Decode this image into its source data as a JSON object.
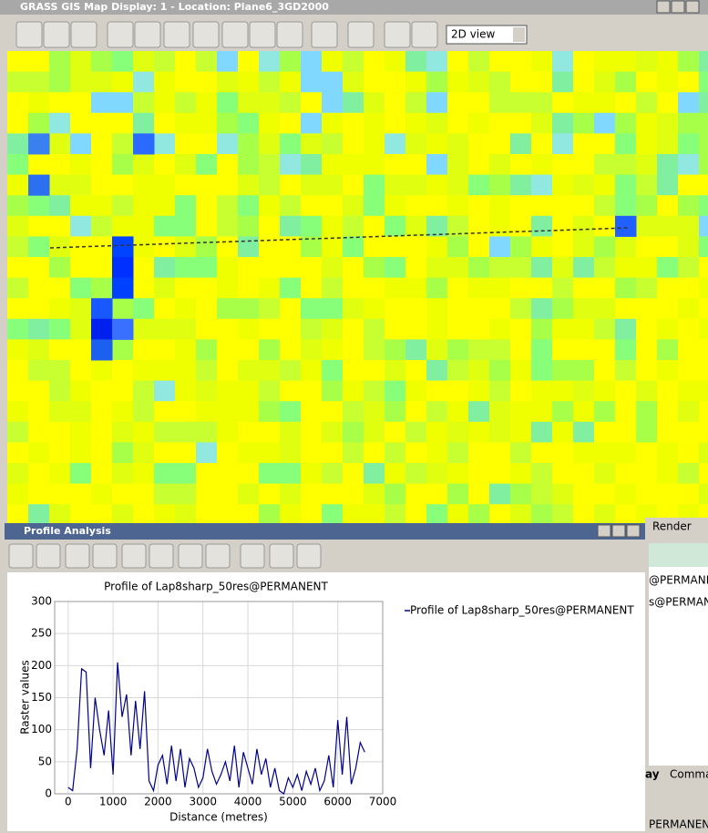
{
  "map_window": {
    "title": "GRASS GIS Map Display: 1 - Location: Plane6_3GD2000",
    "view_select": "2D view"
  },
  "profile_window": {
    "title": "Profile Analysis"
  },
  "side_panel": {
    "tab": "Render",
    "rows": [
      "@PERMANENT",
      "s@PERMANENT"
    ],
    "tabs": [
      "ay",
      "Comman"
    ],
    "status": "PERMANENT"
  },
  "chart_data": {
    "type": "line",
    "title": "Profile of Lap8sharp_50res@PERMANENT",
    "xlabel": "Distance (metres)",
    "ylabel": "Raster values",
    "x": [
      0,
      100,
      200,
      300,
      400,
      500,
      600,
      700,
      800,
      900,
      1000,
      1100,
      1200,
      1300,
      1400,
      1500,
      1600,
      1700,
      1800,
      1900,
      2000,
      2100,
      2200,
      2300,
      2400,
      2500,
      2600,
      2700,
      2800,
      2900,
      3000,
      3100,
      3200,
      3300,
      3400,
      3500,
      3600,
      3700,
      3800,
      3900,
      4000,
      4100,
      4200,
      4300,
      4400,
      4500,
      4600,
      4700,
      4800,
      4900,
      5000,
      5100,
      5200,
      5300,
      5400,
      5500,
      5600,
      5700,
      5800,
      5900,
      6000,
      6100,
      6200,
      6300,
      6400,
      6500,
      6600
    ],
    "series": [
      {
        "name": "Profile of Lap8sharp_50res@PERMANENT",
        "color": "#00008b",
        "values": [
          10,
          5,
          70,
          195,
          190,
          40,
          150,
          100,
          60,
          130,
          30,
          205,
          120,
          155,
          60,
          145,
          70,
          160,
          20,
          5,
          45,
          60,
          15,
          75,
          20,
          70,
          10,
          55,
          40,
          10,
          25,
          70,
          35,
          15,
          30,
          50,
          20,
          75,
          10,
          65,
          40,
          15,
          70,
          30,
          55,
          10,
          40,
          5,
          0,
          25,
          10,
          30,
          5,
          35,
          15,
          40,
          5,
          20,
          60,
          10,
          115,
          30,
          120,
          15,
          40,
          80,
          65
        ]
      }
    ],
    "xlim": [
      -300,
      7000
    ],
    "xticks": [
      0,
      1000,
      2000,
      3000,
      4000,
      5000,
      6000,
      7000
    ],
    "ylim": [
      0,
      300
    ],
    "yticks": [
      0,
      50,
      100,
      150,
      200,
      250,
      300
    ],
    "grid": true,
    "legend": "right"
  }
}
